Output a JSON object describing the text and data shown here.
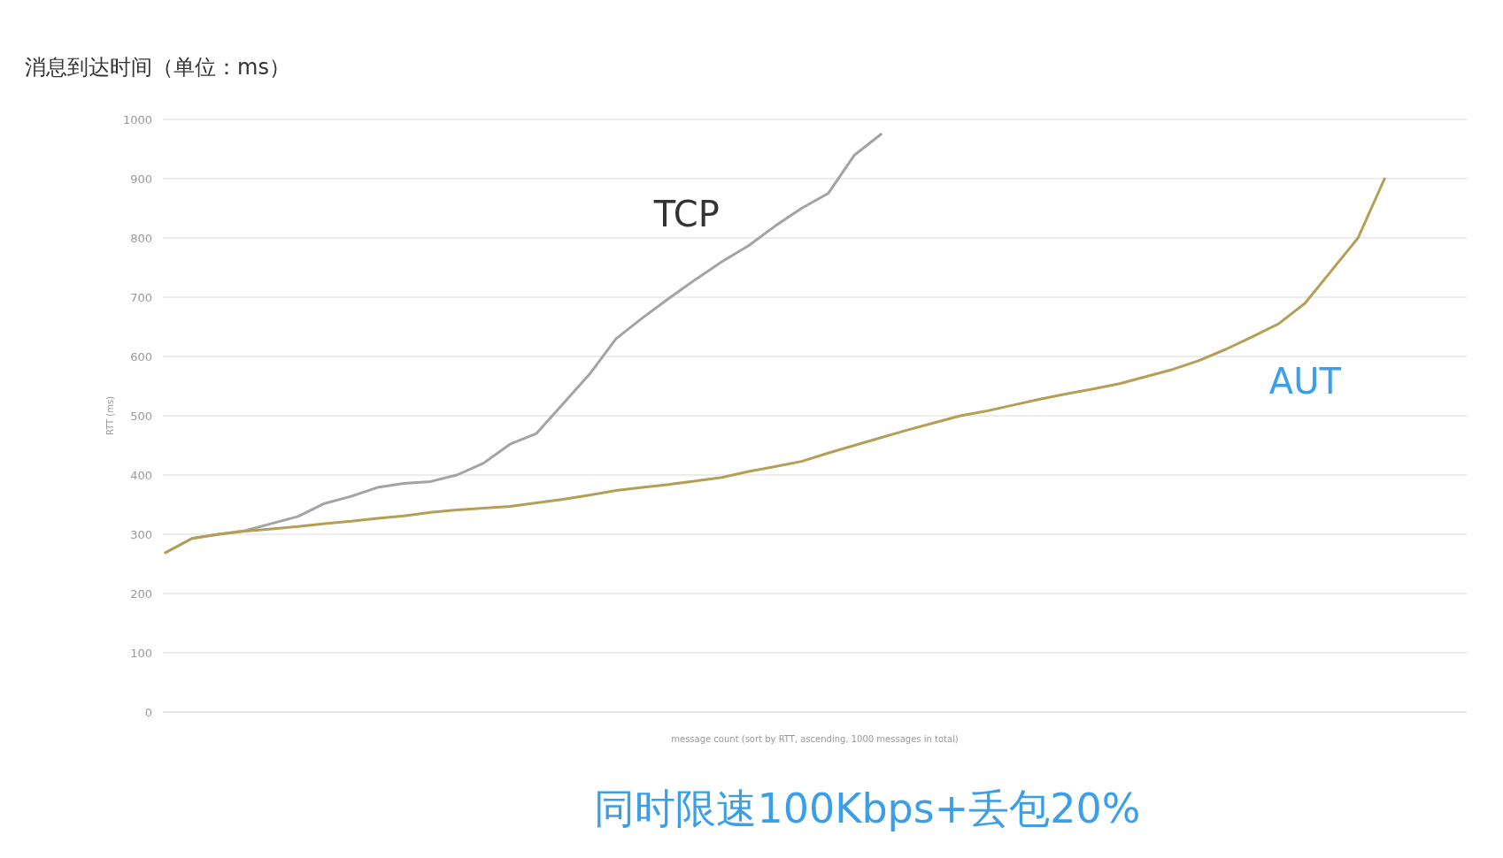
{
  "chart_data": {
    "type": "line",
    "title": "消息到达时间（单位：ms）",
    "xlabel": "message count (sort by RTT, ascending, 1000 messages in total)",
    "ylabel": "RTT (ms)",
    "annotations": [
      "同时限速100Kbps+丢包20%"
    ],
    "categories": [
      null,
      null,
      null,
      null,
      null,
      null,
      null,
      null,
      null,
      null,
      null,
      null,
      null,
      null,
      null,
      null,
      null,
      null,
      null,
      null,
      null,
      null,
      null,
      null,
      null,
      null,
      null,
      null,
      null,
      null,
      null,
      null,
      null,
      null,
      null,
      null,
      null,
      null,
      null,
      null,
      null,
      null,
      null,
      null,
      null,
      null,
      null,
      null,
      null,
      null
    ],
    "ylim": [
      0,
      1000
    ],
    "yticks": [
      0,
      100,
      200,
      300,
      400,
      500,
      600,
      700,
      800,
      900,
      1000
    ],
    "tick_labels": "y",
    "grid": "y",
    "legend": false,
    "marker": "none",
    "line_style": "solid",
    "series": [
      {
        "name": "TCP",
        "color": "#a3a3a3",
        "values": [
          269,
          293,
          300,
          306,
          318,
          330,
          352,
          364,
          379,
          386,
          389,
          400,
          420,
          452,
          470,
          520,
          570,
          630,
          665,
          698,
          730,
          760,
          787,
          820,
          850,
          875,
          940,
          975,
          null,
          null,
          null,
          null,
          null,
          null,
          null,
          null,
          null,
          null,
          null,
          null,
          null,
          null,
          null,
          null,
          null,
          null,
          null,
          null,
          null,
          null
        ]
      },
      {
        "name": "AUT",
        "color": "#b59e55",
        "values": [
          269,
          293,
          300,
          305,
          309,
          313,
          318,
          322,
          327,
          331,
          337,
          341,
          344,
          347,
          353,
          359,
          366,
          374,
          379,
          384,
          390,
          396,
          406,
          414,
          423,
          437,
          450,
          463,
          476,
          488,
          500,
          508,
          518,
          528,
          537,
          545,
          554,
          566,
          578,
          593,
          612,
          633,
          655,
          690,
          745,
          800,
          900,
          null,
          null,
          null
        ]
      }
    ]
  }
}
